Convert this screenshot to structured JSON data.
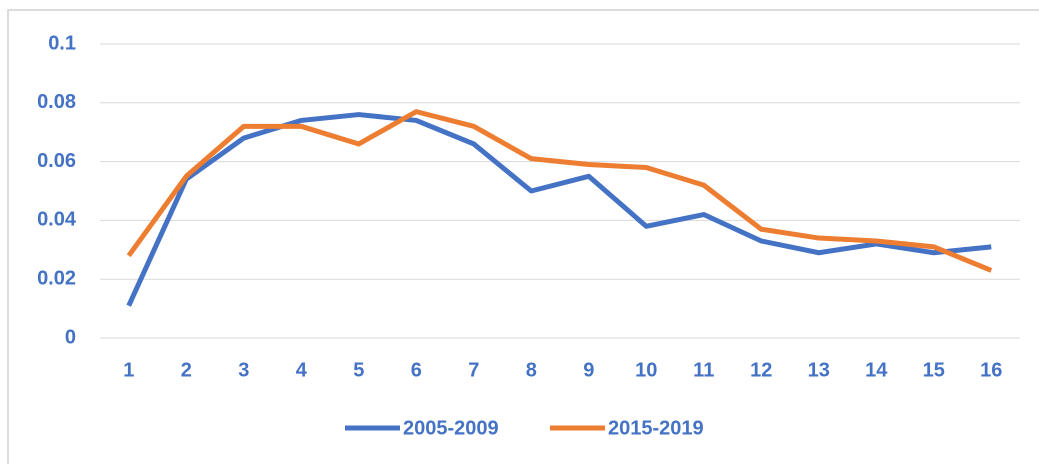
{
  "chart_data": {
    "type": "line",
    "categories": [
      "1",
      "2",
      "3",
      "4",
      "5",
      "6",
      "7",
      "8",
      "9",
      "10",
      "11",
      "12",
      "13",
      "14",
      "15",
      "16"
    ],
    "series": [
      {
        "name": "2005-2009",
        "color": "#4472c4",
        "values": [
          0.011,
          0.054,
          0.068,
          0.074,
          0.076,
          0.074,
          0.066,
          0.05,
          0.055,
          0.038,
          0.042,
          0.033,
          0.029,
          0.032,
          0.029,
          0.031
        ]
      },
      {
        "name": "2015-2019",
        "color": "#ed7d31",
        "values": [
          0.028,
          0.055,
          0.072,
          0.072,
          0.066,
          0.077,
          0.072,
          0.061,
          0.059,
          0.058,
          0.052,
          0.037,
          0.034,
          0.033,
          0.031,
          0.023
        ]
      }
    ],
    "ylim": [
      0,
      0.1
    ],
    "yticks": [
      0,
      0.02,
      0.04,
      0.06,
      0.08,
      0.1
    ],
    "grid": true,
    "legend": "bottom"
  }
}
